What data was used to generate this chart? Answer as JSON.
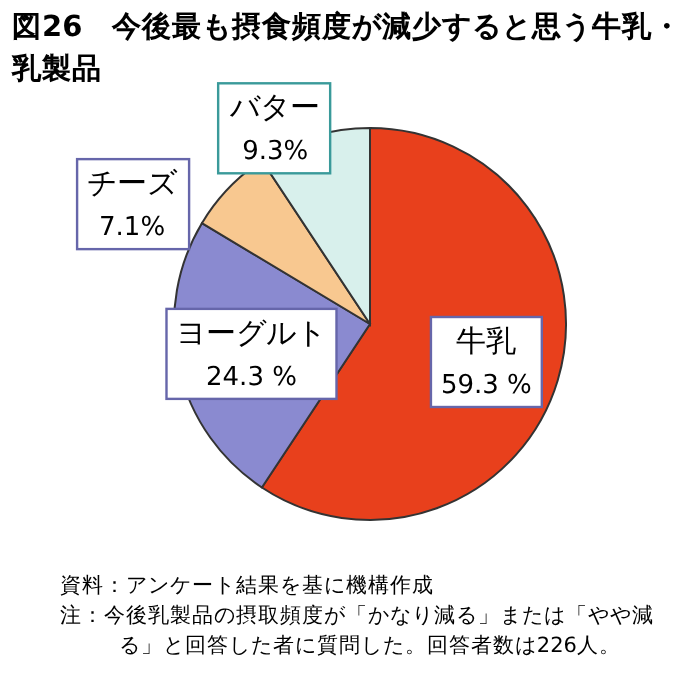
{
  "chart_data": {
    "type": "pie",
    "title": "図26　今後最も摂食頻度が減少すると思う牛乳・乳製品",
    "categories": [
      "牛乳",
      "ヨーグルト",
      "チーズ",
      "バター"
    ],
    "values": [
      59.3,
      24.3,
      7.1,
      9.3
    ],
    "value_labels": [
      "59.3 %",
      "24.3 %",
      "7.1%",
      "9.3%"
    ],
    "colors": [
      "#e8401c",
      "#8a8ad0",
      "#f8c890",
      "#d8f0ec"
    ],
    "annotations": [
      "資料：アンケート結果を基に機構作成",
      "注：今後乳製品の摂取頻度が「かなり減る」または「やや減る」と回答した者に質問した。回答者数は226人。"
    ]
  }
}
